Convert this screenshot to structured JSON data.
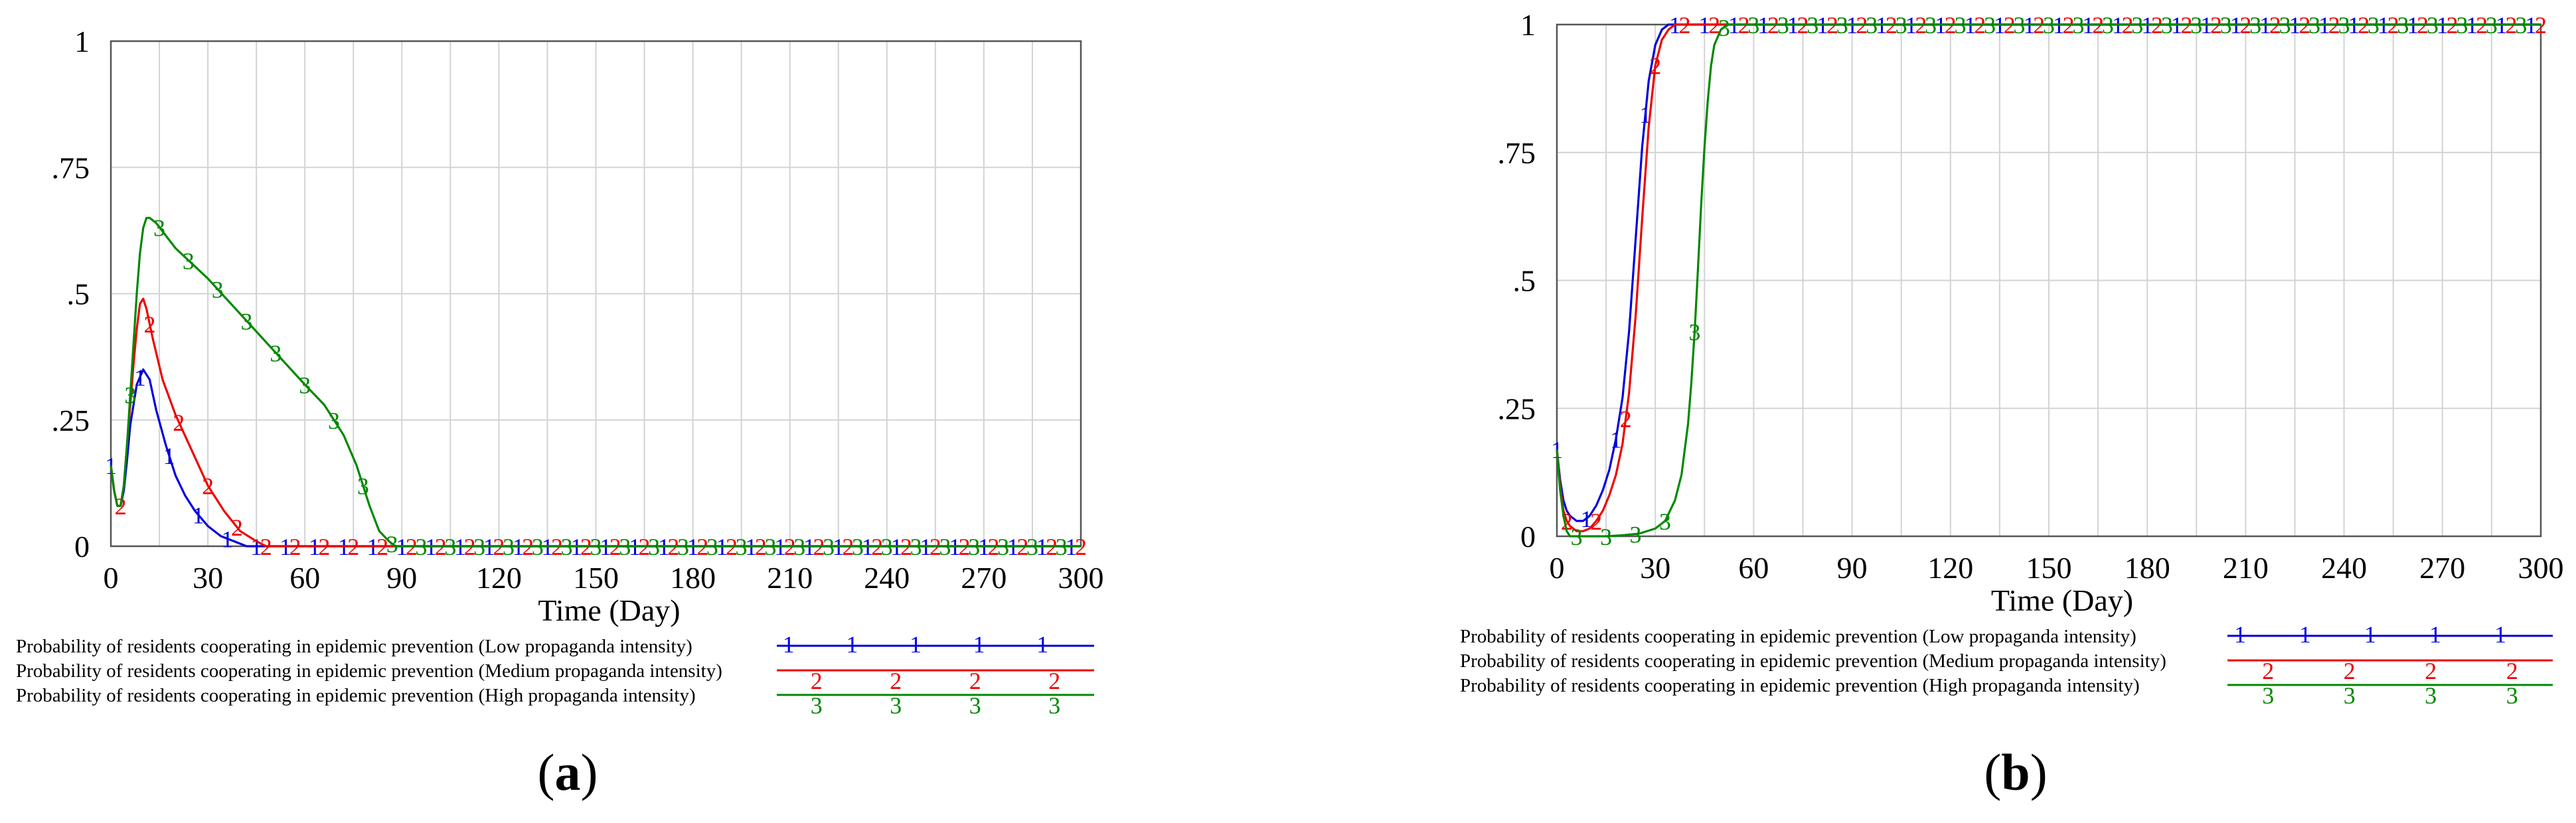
{
  "chart_data": [
    {
      "type": "line",
      "panel_label": "a",
      "xlabel": "Time (Day)",
      "ylabel": "",
      "xlim": [
        0,
        300
      ],
      "ylim": [
        0,
        1
      ],
      "xticks": [
        0,
        30,
        60,
        90,
        120,
        150,
        180,
        210,
        240,
        270,
        300
      ],
      "yticks": [
        "0",
        ".25",
        ".5",
        ".75",
        "1"
      ],
      "grid": true,
      "legend_position": "bottom",
      "series": [
        {
          "name": "Probability of residents cooperating in epidemic prevention (Low propaganda intensity)",
          "marker": "1",
          "color": "#0000dd",
          "x": [
            0,
            1,
            2,
            3,
            4,
            5,
            6,
            8,
            10,
            12,
            14,
            17,
            20,
            23,
            26,
            30,
            34,
            38,
            42,
            45,
            50,
            60,
            80,
            100,
            150,
            200,
            250,
            300
          ],
          "y": [
            0.16,
            0.11,
            0.08,
            0.08,
            0.11,
            0.17,
            0.24,
            0.32,
            0.35,
            0.33,
            0.27,
            0.2,
            0.14,
            0.1,
            0.07,
            0.04,
            0.02,
            0.01,
            0.0,
            0.0,
            0.0,
            0.0,
            0.0,
            0.0,
            0.0,
            0.0,
            0.0,
            0.0
          ]
        },
        {
          "name": "Probability of residents cooperating in epidemic prevention (Medium propaganda intensity)",
          "marker": "2",
          "color": "#ee0000",
          "x": [
            0,
            1,
            2,
            3,
            4,
            5,
            6,
            7,
            8,
            9,
            10,
            11,
            13,
            16,
            20,
            25,
            30,
            35,
            40,
            45,
            48,
            60,
            80,
            100,
            150,
            200,
            250,
            300
          ],
          "y": [
            0.16,
            0.11,
            0.08,
            0.08,
            0.12,
            0.2,
            0.28,
            0.36,
            0.43,
            0.48,
            0.49,
            0.47,
            0.41,
            0.33,
            0.26,
            0.19,
            0.12,
            0.07,
            0.03,
            0.01,
            0.0,
            0.0,
            0.0,
            0.0,
            0.0,
            0.0,
            0.0,
            0.0
          ]
        },
        {
          "name": "Probability of residents cooperating in epidemic prevention (High propaganda intensity)",
          "marker": "3",
          "color": "#008800",
          "x": [
            0,
            1,
            2,
            3,
            4,
            5,
            6,
            7,
            8,
            9,
            10,
            11,
            12,
            14,
            20,
            30,
            40,
            50,
            60,
            66,
            72,
            76,
            80,
            83,
            86,
            88,
            90,
            100,
            150,
            200,
            250,
            300
          ],
          "y": [
            0.16,
            0.11,
            0.08,
            0.08,
            0.12,
            0.2,
            0.3,
            0.4,
            0.5,
            0.58,
            0.63,
            0.65,
            0.65,
            0.64,
            0.59,
            0.53,
            0.46,
            0.39,
            0.32,
            0.28,
            0.22,
            0.16,
            0.08,
            0.03,
            0.01,
            0.0,
            0.0,
            0.0,
            0.0,
            0.0,
            0.0,
            0.0
          ]
        }
      ]
    },
    {
      "type": "line",
      "panel_label": "b",
      "xlabel": "Time (Day)",
      "ylabel": "",
      "xlim": [
        0,
        300
      ],
      "ylim": [
        0,
        1
      ],
      "xticks": [
        0,
        30,
        60,
        90,
        120,
        150,
        180,
        210,
        240,
        270,
        300
      ],
      "yticks": [
        "0",
        ".25",
        ".5",
        ".75",
        "1"
      ],
      "grid": true,
      "legend_position": "bottom",
      "series": [
        {
          "name": "Probability of residents cooperating in epidemic prevention (Low propaganda intensity)",
          "marker": "1",
          "color": "#0000dd",
          "x": [
            0,
            1,
            2,
            3,
            4,
            5,
            6,
            8,
            10,
            12,
            14,
            16,
            18,
            20,
            22,
            24,
            26,
            28,
            30,
            32,
            34,
            36,
            40,
            50,
            100,
            150,
            200,
            250,
            300
          ],
          "y": [
            0.17,
            0.11,
            0.07,
            0.05,
            0.04,
            0.035,
            0.03,
            0.03,
            0.04,
            0.06,
            0.09,
            0.13,
            0.19,
            0.27,
            0.4,
            0.58,
            0.76,
            0.89,
            0.96,
            0.99,
            1.0,
            1.0,
            1.0,
            1.0,
            1.0,
            1.0,
            1.0,
            1.0,
            1.0
          ]
        },
        {
          "name": "Probability of residents cooperating in epidemic prevention (Medium propaganda intensity)",
          "marker": "2",
          "color": "#ee0000",
          "x": [
            0,
            1,
            2,
            3,
            4,
            5,
            6,
            8,
            10,
            12,
            14,
            16,
            18,
            20,
            22,
            24,
            26,
            28,
            30,
            32,
            34,
            36,
            38,
            40,
            50,
            100,
            150,
            200,
            250,
            300
          ],
          "y": [
            0.17,
            0.1,
            0.05,
            0.03,
            0.02,
            0.015,
            0.01,
            0.01,
            0.015,
            0.03,
            0.05,
            0.08,
            0.12,
            0.18,
            0.28,
            0.43,
            0.62,
            0.8,
            0.92,
            0.97,
            0.99,
            1.0,
            1.0,
            1.0,
            1.0,
            1.0,
            1.0,
            1.0,
            1.0,
            1.0
          ]
        },
        {
          "name": "Probability of residents cooperating in epidemic prevention (High propaganda intensity)",
          "marker": "3",
          "color": "#008800",
          "x": [
            0,
            1,
            2,
            3,
            4,
            5,
            6,
            8,
            10,
            15,
            20,
            25,
            30,
            33,
            36,
            38,
            40,
            41,
            42,
            43,
            44,
            45,
            46,
            47,
            48,
            50,
            52,
            55,
            60,
            100,
            150,
            200,
            250,
            300
          ],
          "y": [
            0.17,
            0.09,
            0.04,
            0.01,
            0.0,
            0.0,
            0.0,
            0.0,
            0.0,
            0.0,
            0.002,
            0.005,
            0.015,
            0.03,
            0.07,
            0.12,
            0.22,
            0.3,
            0.4,
            0.52,
            0.65,
            0.76,
            0.85,
            0.92,
            0.96,
            0.99,
            1.0,
            1.0,
            1.0,
            1.0,
            1.0,
            1.0,
            1.0,
            1.0
          ]
        }
      ]
    }
  ]
}
